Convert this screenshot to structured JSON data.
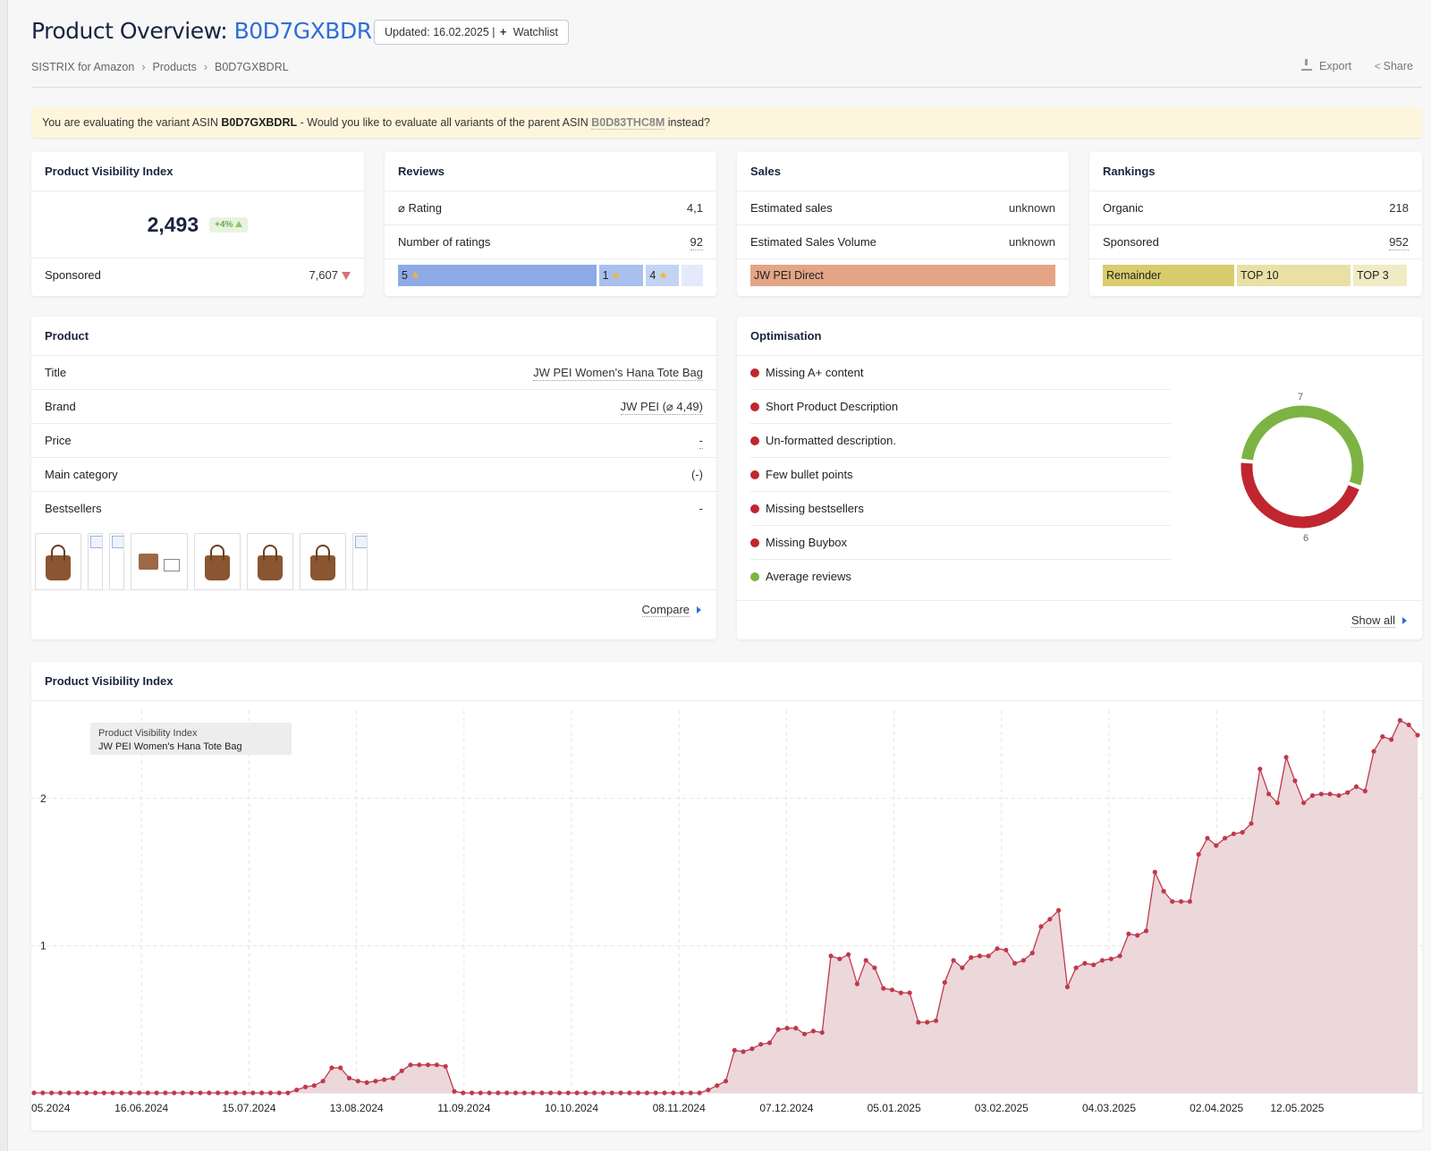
{
  "header": {
    "title_prefix": "Product Overview:",
    "asin": "B0D7GXBDRL",
    "updated": "Updated: 16.02.2025 |",
    "watchlist": "Watchlist",
    "export": "Export",
    "share": "Share"
  },
  "breadcrumb": [
    "SISTRIX for Amazon",
    "Products",
    "B0D7GXBDRL"
  ],
  "notice": {
    "pre": "You are evaluating the variant ASIN",
    "asin": "B0D7GXBDRL",
    "mid": "- Would you like to evaluate all variants of the parent ASIN",
    "parent": "B0D83THC8M",
    "post": "instead?"
  },
  "pvi_card": {
    "title": "Product Visibility Index",
    "value": "2,493",
    "badge": "+4%",
    "sponsored_label": "Sponsored",
    "sponsored_value": "7,607"
  },
  "reviews": {
    "title": "Reviews",
    "rating_label": "⌀ Rating",
    "rating_value": "4,1",
    "count_label": "Number of ratings",
    "count_value": "92",
    "bars": [
      {
        "label": "5",
        "color": "#8eaae6"
      },
      {
        "label": "1",
        "color": "#a9bfee"
      },
      {
        "label": "4",
        "color": "#c3d3f4"
      },
      {
        "label": "",
        "color": "#e3eafb"
      }
    ]
  },
  "sales": {
    "title": "Sales",
    "est_sales_label": "Estimated sales",
    "est_sales_value": "unknown",
    "est_volume_label": "Estimated Sales Volume",
    "est_volume_value": "unknown",
    "seller": "JW PEI Direct",
    "seller_color": "#e3a586"
  },
  "rankings": {
    "title": "Rankings",
    "organic_label": "Organic",
    "organic_value": "218",
    "sponsored_label": "Sponsored",
    "sponsored_value": "952",
    "bars": [
      {
        "label": "Remainder",
        "color": "#d9cc6d"
      },
      {
        "label": "TOP 10",
        "color": "#e9e0a6"
      },
      {
        "label": "TOP 3",
        "color": "#f1ebc5"
      }
    ]
  },
  "product": {
    "title": "Product",
    "rows": [
      {
        "label": "Title",
        "value": "JW PEI Women's Hana Tote Bag"
      },
      {
        "label": "Brand",
        "value": "JW PEI (⌀ 4,49)"
      },
      {
        "label": "Price",
        "value": "-"
      },
      {
        "label": "Main category",
        "value": "(-)"
      },
      {
        "label": "Bestsellers",
        "value": "-"
      }
    ],
    "compare": "Compare"
  },
  "optimisation": {
    "title": "Optimisation",
    "items": [
      {
        "label": "Missing A+ content",
        "color": "#c0262f"
      },
      {
        "label": "Short Product Description",
        "color": "#c0262f"
      },
      {
        "label": "Un-formatted description.",
        "color": "#c0262f"
      },
      {
        "label": "Few bullet points",
        "color": "#c0262f"
      },
      {
        "label": "Missing bestsellers",
        "color": "#c0262f"
      },
      {
        "label": "Missing Buybox",
        "color": "#c0262f"
      },
      {
        "label": "Average reviews",
        "color": "#7cb342"
      }
    ],
    "donut": {
      "good": 7,
      "bad": 6,
      "good_label": "7",
      "bad_label": "6",
      "good_color": "#7cb342",
      "bad_color": "#c0262f"
    },
    "show_all": "Show all"
  },
  "chart_data": {
    "type": "area",
    "title": "Product Visibility Index",
    "legend": {
      "line1": "Product Visibility Index",
      "line2": "JW PEI Women's Hana Tote Bag",
      "placement": "top-left"
    },
    "series_color": "#c0394b",
    "fill_color": "#ecd7db",
    "ylim": [
      0,
      2.6
    ],
    "yticks": [
      1,
      2
    ],
    "ytick_labels": [
      "1",
      "2"
    ],
    "xtick_labels": [
      "05.2024",
      "16.06.2024",
      "15.07.2024",
      "13.08.2024",
      "11.09.2024",
      "10.10.2024",
      "08.11.2024",
      "07.12.2024",
      "05.01.2025",
      "03.02.2025",
      "04.03.2025",
      "02.04.2025",
      "12.05.2025"
    ],
    "x_range_days": [
      0,
      432
    ],
    "values": [
      0,
      0,
      0,
      0,
      0,
      0,
      0,
      0,
      0,
      0,
      0,
      0,
      0,
      0,
      0,
      0,
      0,
      0,
      0,
      0,
      0,
      0,
      0,
      0,
      0,
      0,
      0,
      0,
      0,
      0,
      0.02,
      0.04,
      0.05,
      0.08,
      0.17,
      0.17,
      0.1,
      0.08,
      0.07,
      0.08,
      0.09,
      0.1,
      0.15,
      0.19,
      0.19,
      0.19,
      0.19,
      0.18,
      0.01,
      0,
      0,
      0,
      0,
      0,
      0,
      0,
      0,
      0,
      0,
      0,
      0,
      0,
      0,
      0,
      0,
      0,
      0,
      0,
      0,
      0,
      0,
      0,
      0,
      0,
      0,
      0,
      0,
      0.02,
      0.05,
      0.08,
      0.29,
      0.28,
      0.3,
      0.33,
      0.34,
      0.43,
      0.44,
      0.44,
      0.4,
      0.42,
      0.41,
      0.93,
      0.91,
      0.94,
      0.74,
      0.9,
      0.85,
      0.71,
      0.7,
      0.68,
      0.68,
      0.48,
      0.48,
      0.49,
      0.75,
      0.9,
      0.85,
      0.92,
      0.93,
      0.93,
      0.98,
      0.97,
      0.88,
      0.9,
      0.95,
      1.13,
      1.18,
      1.24,
      0.72,
      0.85,
      0.88,
      0.87,
      0.9,
      0.91,
      0.93,
      1.08,
      1.07,
      1.1,
      1.5,
      1.37,
      1.3,
      1.3,
      1.3,
      1.62,
      1.73,
      1.68,
      1.73,
      1.76,
      1.77,
      1.83,
      2.2,
      2.03,
      1.97,
      2.28,
      2.12,
      1.97,
      2.02,
      2.03,
      2.03,
      2.02,
      2.04,
      2.08,
      2.05,
      2.32,
      2.42,
      2.4,
      2.53,
      2.5,
      2.43
    ]
  }
}
